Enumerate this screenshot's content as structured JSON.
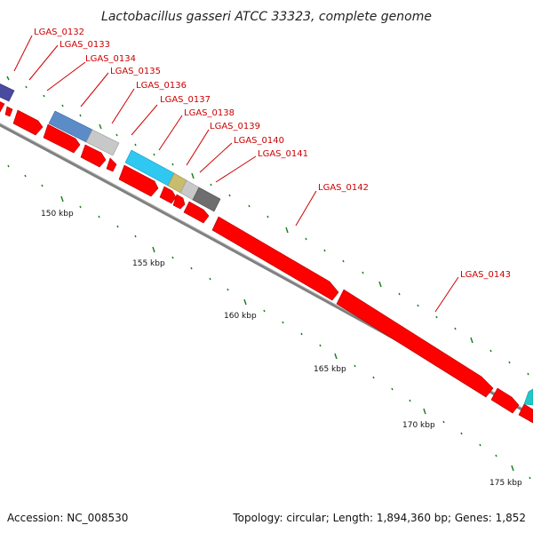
{
  "title": "Lactobacillus gasseri ATCC 33323, complete genome",
  "accession": "Accession: NC_008530",
  "summary": "Topology: circular; Length: 1,894,360 bp; Genes: 1,852",
  "colors": {
    "gene_red": "#ff0000",
    "gene_red_edge": "#b30000",
    "backbone": "#8a8a8a",
    "tick_green": "#1a7a1a",
    "label_red": "#cc0000",
    "navy": "#4a4aa0",
    "steel_blue": "#5b8cc8",
    "light_gray": "#c8c8c8",
    "cyan": "#2ec8f0",
    "khaki": "#c8bc6e",
    "dark_gray": "#6e6e6e",
    "teal": "#20c8c8"
  },
  "scale_ticks": [
    {
      "label": "150 kbp"
    },
    {
      "label": "155 kbp"
    },
    {
      "label": "160 kbp"
    },
    {
      "label": "165 kbp"
    },
    {
      "label": "170 kbp"
    },
    {
      "label": "175 kbp"
    }
  ],
  "gene_labels": [
    {
      "label": "LGAS_0132"
    },
    {
      "label": "LGAS_0133"
    },
    {
      "label": "LGAS_0134"
    },
    {
      "label": "LGAS_0135"
    },
    {
      "label": "LGAS_0136"
    },
    {
      "label": "LGAS_0137"
    },
    {
      "label": "LGAS_0138"
    },
    {
      "label": "LGAS_0139"
    },
    {
      "label": "LGAS_0140"
    },
    {
      "label": "LGAS_0141"
    },
    {
      "label": "LGAS_0142"
    },
    {
      "label": "LGAS_0143"
    }
  ]
}
